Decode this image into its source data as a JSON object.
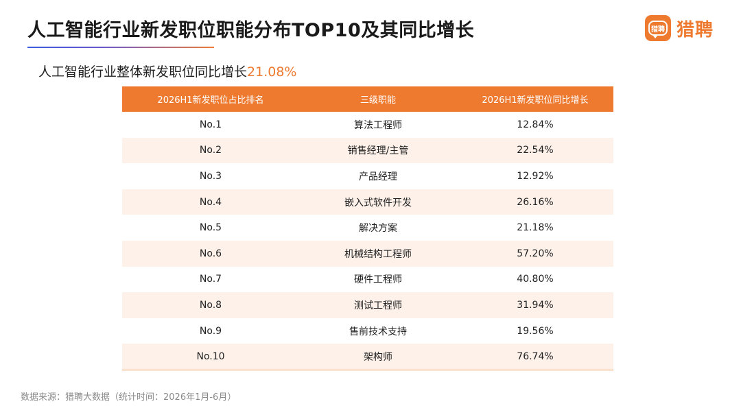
{
  "header": {
    "title": "人工智能行业新发职位职能分布TOP10及其同比增长"
  },
  "logo": {
    "badge_text": "猎聘",
    "brand_name": "猎聘",
    "color": "#ee7a30"
  },
  "subtitle": {
    "prefix": "人工智能行业整体新发职位同比增长",
    "value": "21.08%"
  },
  "table": {
    "headers": [
      "2026H1新发职位占比排名",
      "三级职能",
      "2026H1新发职位同比增长"
    ],
    "rows": [
      {
        "rank": "No.1",
        "role": "算法工程师",
        "growth": "12.84%"
      },
      {
        "rank": "No.2",
        "role": "销售经理/主管",
        "growth": "22.54%"
      },
      {
        "rank": "No.3",
        "role": "产品经理",
        "growth": "12.92%"
      },
      {
        "rank": "No.4",
        "role": "嵌入式软件开发",
        "growth": "26.16%"
      },
      {
        "rank": "No.5",
        "role": "解决方案",
        "growth": "21.18%"
      },
      {
        "rank": "No.6",
        "role": "机械结构工程师",
        "growth": "57.20%"
      },
      {
        "rank": "No.7",
        "role": "硬件工程师",
        "growth": "40.80%"
      },
      {
        "rank": "No.8",
        "role": "测试工程师",
        "growth": "31.94%"
      },
      {
        "rank": "No.9",
        "role": "售前技术支持",
        "growth": "19.56%"
      },
      {
        "rank": "No.10",
        "role": "架构师",
        "growth": "76.74%"
      }
    ]
  },
  "footer": {
    "source": "数据来源：猎聘大数据（统计时间：2026年1月-6月）"
  },
  "colors": {
    "accent": "#ee7a30",
    "row_tint": "#fdf1ea"
  }
}
